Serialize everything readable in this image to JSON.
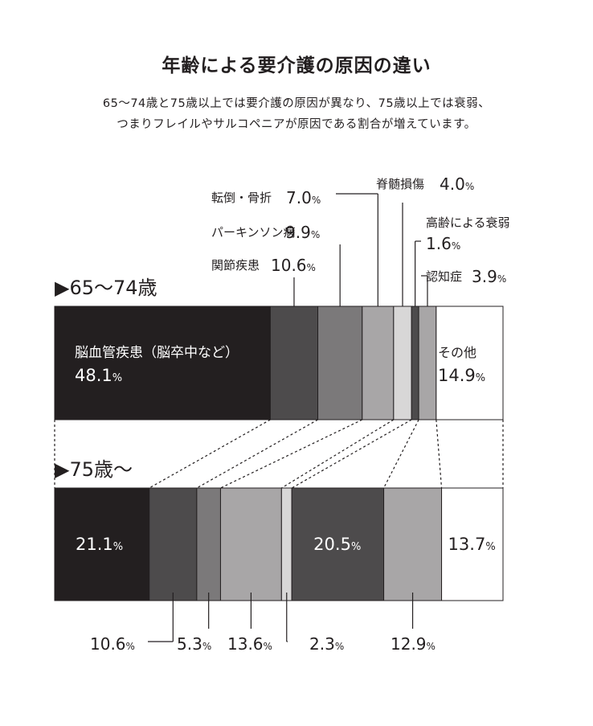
{
  "title": "年齢による要介護の原因の違い",
  "subtitle_line1": "65〜74歳と75歳以上では要介護の原因が異なり、75歳以上では衰弱、",
  "subtitle_line2": "つまりフレイルやサルコペニアが原因である割合が増えています。",
  "chart_data": {
    "type": "bar",
    "orientation": "horizontal-stacked-100",
    "title": "年齢による要介護の原因の違い",
    "categories_order": [
      "脳血管疾患（脳卒中など）",
      "関節疾患",
      "パーキンソン病",
      "転倒・骨折",
      "脊髄損傷",
      "高齢による衰弱",
      "認知症",
      "その他"
    ],
    "colors": {
      "脳血管疾患（脳卒中など）": "#231f20",
      "関節疾患": "#4d4b4c",
      "パーキンソン病": "#7b797a",
      "転倒・骨折": "#a8a6a7",
      "脊髄損傷": "#d8d7d7",
      "高齢による衰弱": "#4d4b4c",
      "認知症": "#a8a6a7",
      "その他": "#ffffff"
    },
    "series": [
      {
        "name": "▶65〜74歳",
        "values": [
          48.1,
          10.6,
          9.9,
          7.0,
          4.0,
          1.6,
          3.9,
          14.9
        ],
        "labels": [
          "48.1",
          "10.6",
          "9.9",
          "7.0",
          "4.0",
          "1.6",
          "3.9",
          "14.9"
        ]
      },
      {
        "name": "▶75歳〜",
        "values": [
          21.1,
          10.6,
          5.3,
          13.6,
          2.3,
          20.5,
          12.9,
          13.7
        ],
        "labels": [
          "21.1",
          "10.6",
          "5.3",
          "13.6",
          "2.3",
          "20.5",
          "12.9",
          "13.7"
        ]
      }
    ],
    "category_labels_top": {
      "脳血管疾患（脳卒中など）": "脳血管疾患（脳卒中など）",
      "関節疾患": "関節疾患",
      "パーキンソン病": "パーキンソン病",
      "転倒・骨折": "転倒・骨折",
      "脊髄損傷": "脊髄損傷",
      "高齢による衰弱": "高齢による衰弱",
      "認知症": "認知症",
      "その他": "その他"
    },
    "unit": "%"
  }
}
